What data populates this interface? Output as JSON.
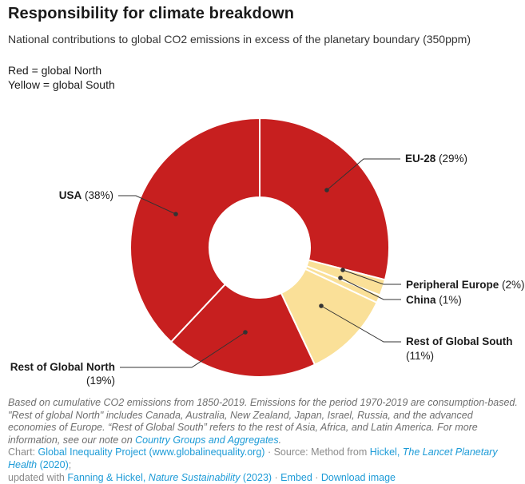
{
  "header": {
    "title": "Responsibility for climate breakdown",
    "subtitle": "National contributions to global CO2 emissions in excess of the planetary boundary (350ppm)",
    "legend_red": "Red = global North",
    "legend_yellow": "Yellow = global South"
  },
  "colors": {
    "north_red": "#C71F1F",
    "south_yellow": "#FAE098",
    "leader_line": "#333333",
    "label_text": "#1a1a1a",
    "link_blue": "#1d9bd7",
    "footnote_gray": "#6e6e6e",
    "credit_gray": "#8a8a8a"
  },
  "chart_data": {
    "type": "pie",
    "subtype": "donut",
    "title": "Responsibility for climate breakdown",
    "unit": "%",
    "direction": "clockwise",
    "start_angle_deg": 0,
    "inner_radius_ratio": 0.39,
    "legend": {
      "red": "global North",
      "yellow": "global South"
    },
    "group_colors": {
      "north": "#C71F1F",
      "south": "#FAE098"
    },
    "slices": [
      {
        "label": "EU-28",
        "value": 29,
        "group": "north"
      },
      {
        "label": "Peripheral Europe",
        "value": 2,
        "group": "south"
      },
      {
        "label": "China",
        "value": 1,
        "group": "south"
      },
      {
        "label": "Rest of Global South",
        "value": 11,
        "group": "south"
      },
      {
        "label": "Rest of Global North",
        "value": 19,
        "group": "north"
      },
      {
        "label": "USA",
        "value": 38,
        "group": "north"
      }
    ]
  },
  "footnote": {
    "text_before_link": "Based on cumulative CO2 emissions from 1850-2019. Emissions for the period 1970-2019 are consumption-based. \"Rest of global North\" includes Canada, Australia, New Zealand, Japan, Israel, Russia, and the advanced economies of Europe. “Rest of Global South” refers to the rest of Asia, Africa, and Latin America. For more information, see our note on ",
    "link": "Country Groups and Aggregates",
    "text_after_link": "."
  },
  "credit": {
    "chart_label": "Chart: ",
    "chart_link": "Global Inequality Project (www.globalinequality.org)",
    "sep1": " · ",
    "source_label": "Source: Method from ",
    "source_link1_pre": "Hickel, ",
    "source_link1_italic": "The Lancet Planetary Health",
    "source_link1_post": " (2020)",
    "semicolon": "; ",
    "updated_label": "updated with ",
    "source_link2_pre": "Fanning & Hickel, ",
    "source_link2_italic": "Nature Sustainability",
    "source_link2_post": " (2023)",
    "sep2": " · ",
    "embed_link": "Embed",
    "sep3": " · ",
    "download_link": "Download image"
  }
}
